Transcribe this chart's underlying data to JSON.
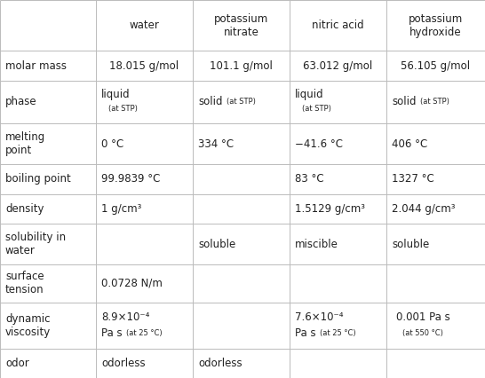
{
  "col_headers": [
    "water",
    "potassium\nnitrate",
    "nitric acid",
    "potassium\nhydroxide"
  ],
  "row_labels": [
    "molar mass",
    "phase",
    "melting\npoint",
    "boiling point",
    "density",
    "solubility in\nwater",
    "surface\ntension",
    "dynamic\nviscosity",
    "odor"
  ],
  "bg_color": "#ffffff",
  "line_color": "#bbbbbb",
  "text_color": "#222222",
  "font_size_main": 8.5,
  "font_size_small": 6.0,
  "fig_width": 5.46,
  "fig_height": 4.26,
  "dpi": 100
}
